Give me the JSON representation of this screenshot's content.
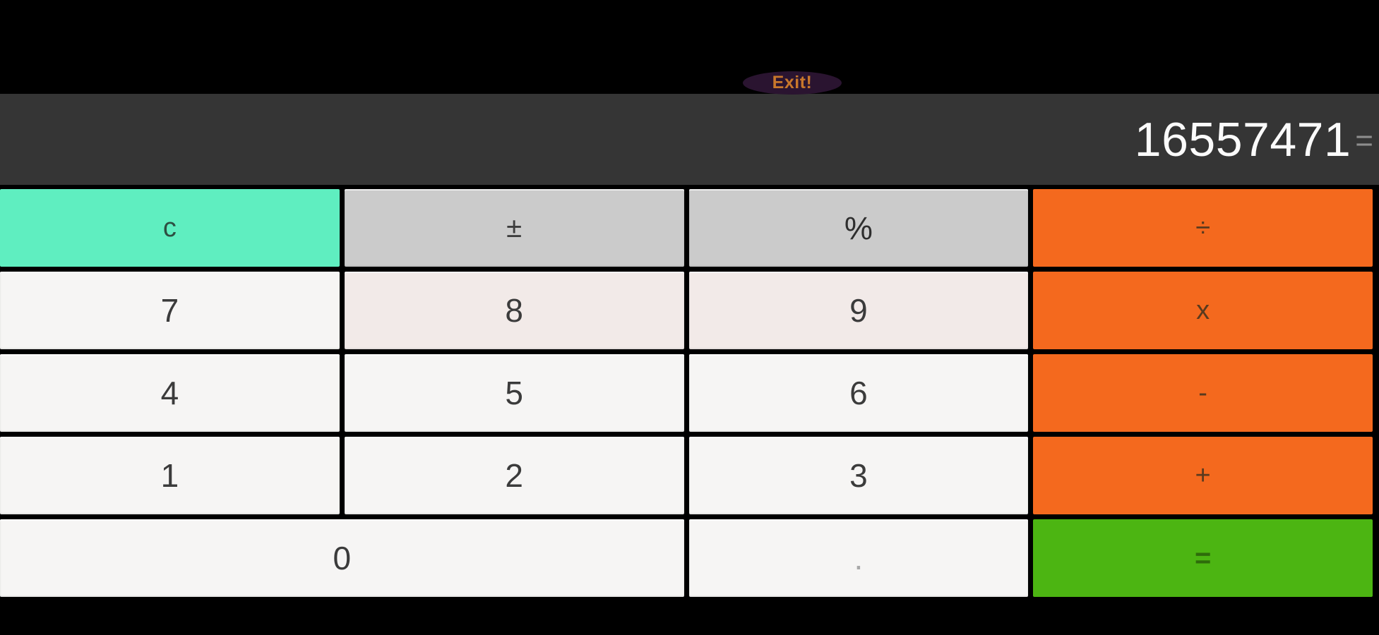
{
  "exit_button": {
    "label": "Exit!"
  },
  "display": {
    "value": "16557471",
    "suffix": "="
  },
  "keys": {
    "clear": "c",
    "plus_minus": "±",
    "percent": "%",
    "divide": "÷",
    "seven": "7",
    "eight": "8",
    "nine": "9",
    "multiply": "x",
    "four": "4",
    "five": "5",
    "six": "6",
    "subtract": "-",
    "one": "1",
    "two": "2",
    "three": "3",
    "add": "+",
    "zero": "0",
    "decimal": ".",
    "equals": "="
  },
  "colors": {
    "screen_bg": "#000000",
    "display_bg": "#353535",
    "display_text": "#fbfbfb",
    "display_suffix_text": "#8d8d8d",
    "exit_bg": "#2a1430",
    "exit_text": "#c8772b",
    "clear_bg": "#5feec0",
    "function_bg": "#cbcbcb",
    "operator_bg": "#f4691e",
    "equals_bg": "#4cb512",
    "digit_bg": "#f6f5f4",
    "digit_alt_bg": "#f2eae8",
    "key_text": "#3b3b3b"
  }
}
